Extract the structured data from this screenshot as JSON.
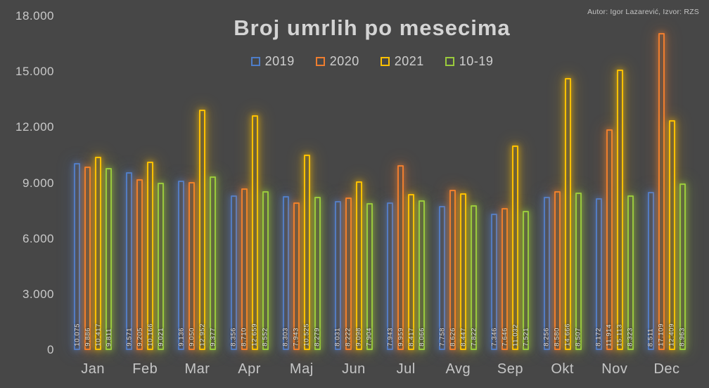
{
  "meta": {
    "author_note": "Autor: Igor Lazarević, Izvor: RZS"
  },
  "chart_data": {
    "type": "bar",
    "title": "Broj umrlih po mesecima",
    "background": "#474747",
    "grid": false,
    "legend_position": "top-center",
    "xlabel": "",
    "ylabel": "",
    "ylim": [
      0,
      18000
    ],
    "yticks": [
      {
        "value": 0,
        "label": "0"
      },
      {
        "value": 3000,
        "label": "3.000"
      },
      {
        "value": 6000,
        "label": "6.000"
      },
      {
        "value": 9000,
        "label": "9.000"
      },
      {
        "value": 12000,
        "label": "12.000"
      },
      {
        "value": 15000,
        "label": "15.000"
      },
      {
        "value": 18000,
        "label": "18.000"
      }
    ],
    "categories": [
      "Jan",
      "Feb",
      "Mar",
      "Apr",
      "Maj",
      "Jun",
      "Jul",
      "Avg",
      "Sep",
      "Okt",
      "Nov",
      "Dec"
    ],
    "series": [
      {
        "name": "2019",
        "color": "#4E7DC8",
        "values": [
          10075,
          9571,
          9136,
          8356,
          8303,
          8031,
          7943,
          7758,
          7346,
          8256,
          8172,
          8511
        ]
      },
      {
        "name": "2020",
        "color": "#EE7D2F",
        "values": [
          9886,
          9205,
          9050,
          8710,
          7943,
          8222,
          9959,
          8626,
          7646,
          8580,
          11914,
          17109
        ]
      },
      {
        "name": "2021",
        "color": "#FEC000",
        "values": [
          10417,
          10166,
          12952,
          12659,
          10525,
          9098,
          8417,
          8447,
          11032,
          14666,
          15113,
          12409
        ]
      },
      {
        "name": "10-19",
        "color": "#9ACA3C",
        "values": [
          9811,
          9021,
          9377,
          8552,
          8279,
          7904,
          8066,
          7822,
          7521,
          8507,
          8323,
          8963
        ]
      }
    ]
  }
}
